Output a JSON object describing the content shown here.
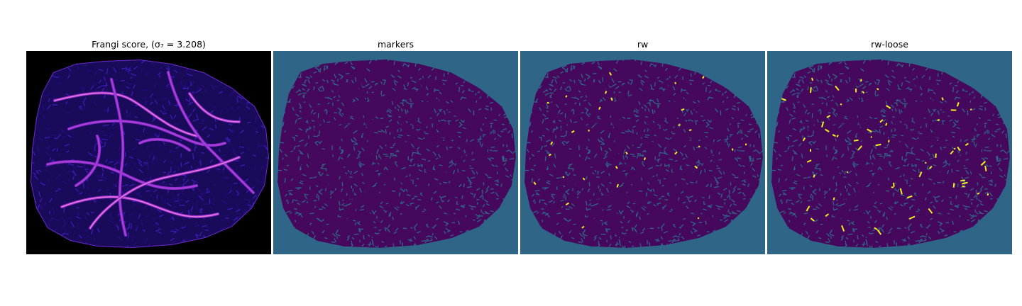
{
  "panels": [
    {
      "title": "Frangi score, (σ₇ = 3.208)",
      "kind": "frangi",
      "background": "#000000"
    },
    {
      "title": "markers",
      "kind": "markers",
      "background": "#2f6688"
    },
    {
      "title": "rw",
      "kind": "rw",
      "background": "#2f6688"
    },
    {
      "title": "rw-loose",
      "kind": "rw-loose",
      "background": "#2f6688"
    }
  ],
  "colors": {
    "tissue_dark": "#46085c",
    "vessel_bright": "#f47ad8",
    "vessel_mid": "#8d2ed0",
    "frangi_bg": "#1a0a5a",
    "segment_teal": "#2f6688",
    "segment_yellow": "#f0f022"
  }
}
